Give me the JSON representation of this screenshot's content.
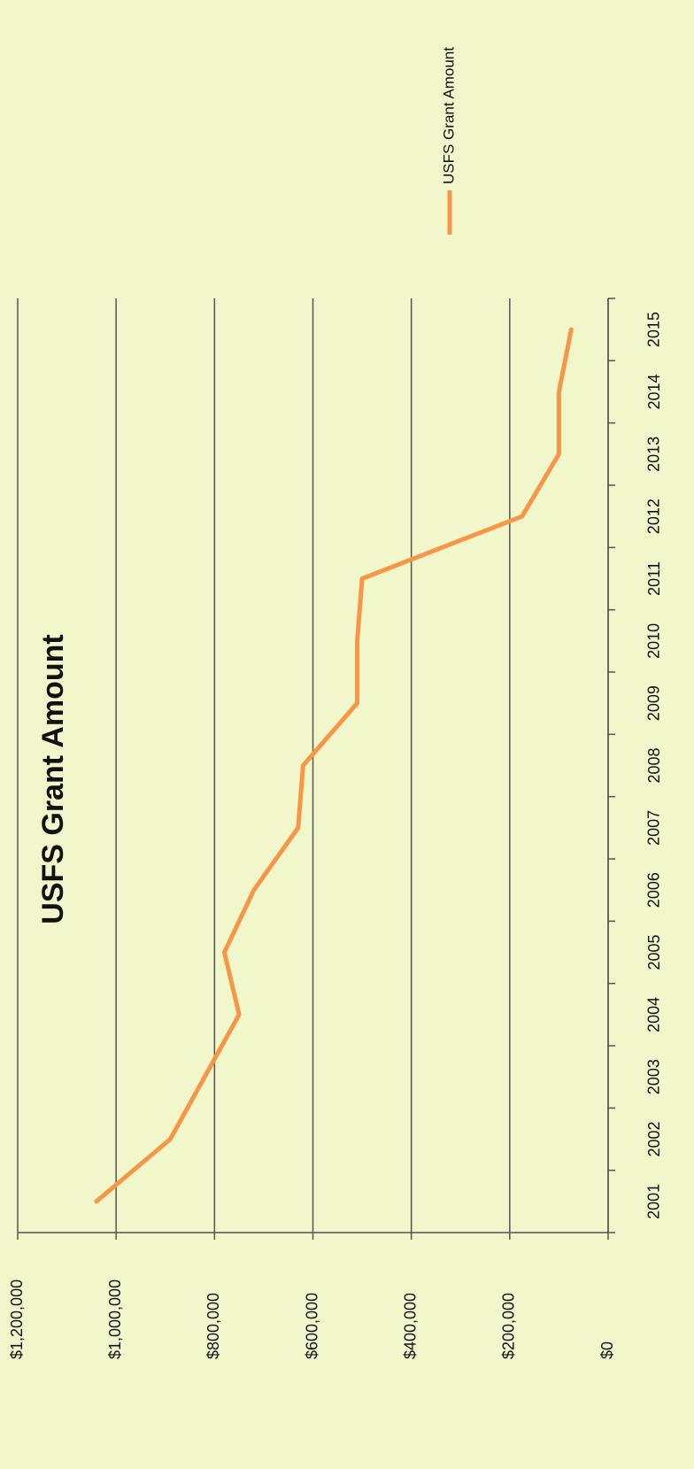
{
  "chart_data": {
    "type": "line",
    "title": "USFS Grant Amount",
    "categories": [
      "2001",
      "2002",
      "2003",
      "2004",
      "2005",
      "2006",
      "2007",
      "2008",
      "2009",
      "2010",
      "2011",
      "2012",
      "2013",
      "2014",
      "2015"
    ],
    "series": [
      {
        "name": "USFS Grant Amount",
        "color": "#f79646",
        "values": [
          1040000,
          890000,
          820000,
          750000,
          780000,
          720000,
          630000,
          620000,
          510000,
          510000,
          500000,
          175000,
          100000,
          100000,
          75000
        ]
      }
    ],
    "ylim": [
      0,
      1200000
    ],
    "yticks": [
      {
        "value": 0,
        "label": "$0"
      },
      {
        "value": 200000,
        "label": "$200,000"
      },
      {
        "value": 400000,
        "label": "$400,000"
      },
      {
        "value": 600000,
        "label": "$600,000"
      },
      {
        "value": 800000,
        "label": "$800,000"
      },
      {
        "value": 1000000,
        "label": "$1,000,000"
      },
      {
        "value": 1200000,
        "label": "$1,200,000"
      }
    ],
    "grid": true,
    "legend": "right"
  }
}
